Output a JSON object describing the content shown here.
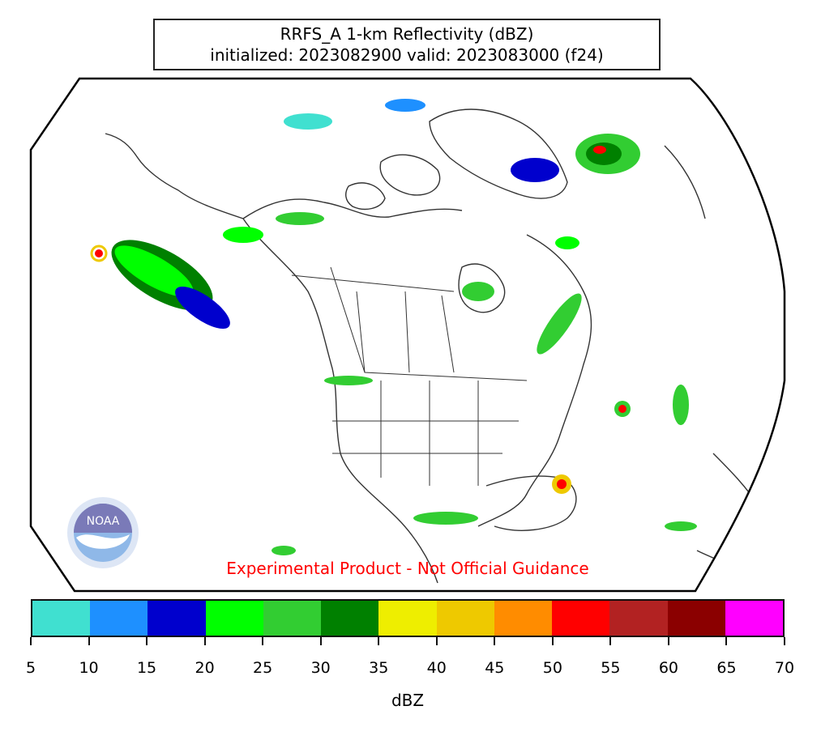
{
  "title": {
    "line1": "RRFS_A 1-km Reflectivity (dBZ)",
    "line2": "initialized: 2023082900 valid: 2023083000 (f24)"
  },
  "disclaimer": "Experimental Product - Not Official Guidance",
  "logo_text": "NOAA",
  "colorbar": {
    "label": "dBZ",
    "ticks": [
      "5",
      "10",
      "15",
      "20",
      "25",
      "30",
      "35",
      "40",
      "45",
      "50",
      "55",
      "60",
      "65",
      "70"
    ],
    "colors": [
      "#40e0d0",
      "#1e90ff",
      "#0000cd",
      "#00ff00",
      "#32cd32",
      "#008000",
      "#eeee00",
      "#eec900",
      "#ff8c00",
      "#ff0000",
      "#b22222",
      "#8b0000",
      "#ff00ff"
    ]
  },
  "map": {
    "projection": "lambert-conformal",
    "region": "North America"
  }
}
